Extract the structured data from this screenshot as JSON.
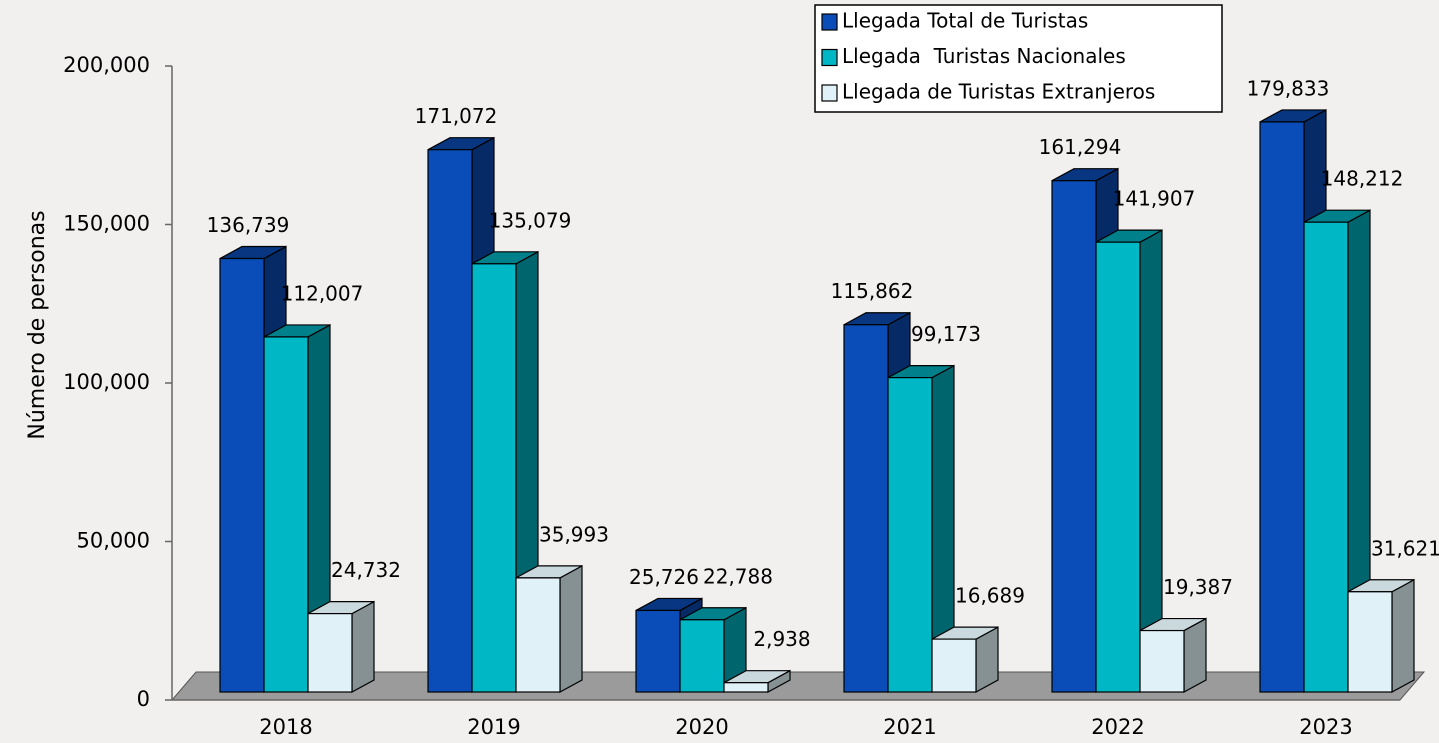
{
  "chart_data": {
    "type": "bar3d",
    "y_label": "Número de personas",
    "categories": [
      "2018",
      "2019",
      "2020",
      "2021",
      "2022",
      "2023"
    ],
    "series": [
      {
        "name": "Llegada Total de Turistas",
        "color": "#0b4db8",
        "values": [
          136739,
          171072,
          25726,
          115862,
          161294,
          179833
        ],
        "value_labels": [
          "136,739",
          "171,072",
          "25,726",
          "115,862",
          "161,294",
          "179,833"
        ]
      },
      {
        "name": "Llegada  Turistas Nacionales",
        "color": "#00b7c6",
        "values": [
          112007,
          135079,
          22788,
          99173,
          141907,
          148212
        ],
        "value_labels": [
          "112,007",
          "135,079",
          "22,788",
          "99,173",
          "141,907",
          "148,212"
        ]
      },
      {
        "name": "Llegada de Turistas Extranjeros",
        "color": "#e0f1f7",
        "values": [
          24732,
          35993,
          2938,
          16689,
          19387,
          31621
        ],
        "value_labels": [
          "24,732",
          "35,993",
          "2,938",
          "16,689",
          "19,387",
          "31,621"
        ]
      }
    ],
    "ylim": [
      0,
      200000
    ],
    "yticks": [
      0,
      {
        "value": 50000,
        "label": "50,000"
      },
      {
        "value": 100000,
        "label": "100,000"
      },
      {
        "value": 150000,
        "label": "150,000"
      },
      {
        "value": 200000,
        "label": "200,000"
      }
    ],
    "legend": "top-right"
  }
}
